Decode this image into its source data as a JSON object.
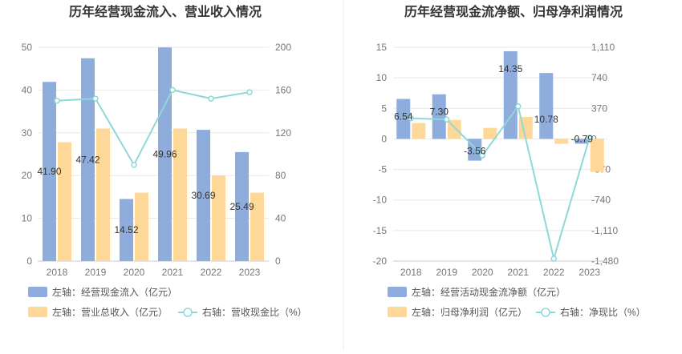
{
  "chart_data": [
    {
      "type": "bar",
      "title": "历年经营现金流入、营业收入情况",
      "categories": [
        "2018",
        "2019",
        "2020",
        "2021",
        "2022",
        "2023"
      ],
      "left_axis": {
        "min": 0,
        "max": 50,
        "ticks": [
          "0",
          "10",
          "20",
          "30",
          "40",
          "50"
        ]
      },
      "right_axis": {
        "min": 0,
        "max": 200,
        "ticks": [
          "0",
          "40",
          "80",
          "120",
          "160",
          "200"
        ]
      },
      "series": [
        {
          "name": "左轴：经营现金流入（亿元）",
          "type": "bar",
          "axis": "left",
          "color": "#8eacdc",
          "values": [
            41.9,
            47.42,
            14.52,
            49.96,
            30.69,
            25.49
          ],
          "labels": [
            "41.90",
            "47.42",
            "14.52",
            "49.96",
            "30.69",
            "25.49"
          ]
        },
        {
          "name": "左轴：营业总收入（亿元）",
          "type": "bar",
          "axis": "left",
          "color": "#fdd898",
          "values": [
            27.8,
            31.0,
            16.0,
            31.0,
            20.0,
            16.0
          ]
        },
        {
          "name": "右轴：营收现金比（%）",
          "type": "line",
          "axis": "right",
          "color": "#8fd8d8",
          "values": [
            150,
            152,
            90,
            160,
            152,
            158
          ]
        }
      ],
      "grid": true,
      "legend": "bottom-left"
    },
    {
      "type": "bar",
      "title": "历年经营现金流净额、归母净利润情况",
      "categories": [
        "2018",
        "2019",
        "2020",
        "2021",
        "2022",
        "2023"
      ],
      "left_axis": {
        "min": -20,
        "max": 15,
        "ticks": [
          "-20",
          "-15",
          "-10",
          "-5",
          "0",
          "5",
          "10",
          "15"
        ]
      },
      "right_axis": {
        "min": -1480,
        "max": 1110,
        "ticks": [
          "-1,480",
          "-1,110",
          "-740",
          "-370",
          "0",
          "370",
          "740",
          "1,110"
        ]
      },
      "series": [
        {
          "name": "左轴：经营活动现金流净额（亿元）",
          "type": "bar",
          "axis": "left",
          "color": "#8eacdc",
          "values": [
            6.54,
            7.3,
            -3.56,
            14.35,
            10.78,
            -0.79
          ],
          "labels": [
            "6.54",
            "7.30",
            "-3.56",
            "14.35",
            "10.78",
            "-0.79"
          ]
        },
        {
          "name": "左轴：归母净利润（亿元）",
          "type": "bar",
          "axis": "left",
          "color": "#fdd898",
          "values": [
            2.6,
            3.1,
            1.8,
            3.6,
            -0.8,
            -5.4
          ]
        },
        {
          "name": "右轴：净现比（%）",
          "type": "line",
          "axis": "right",
          "color": "#8fd8d8",
          "values": [
            250,
            235,
            -200,
            395,
            -1450,
            15
          ]
        }
      ],
      "grid": true,
      "legend": "bottom-left"
    }
  ]
}
